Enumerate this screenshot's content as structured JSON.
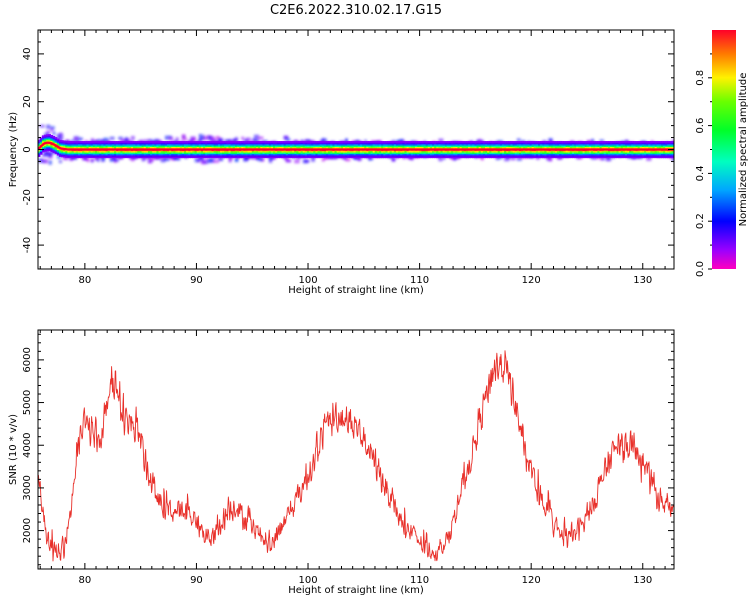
{
  "title": "C2E6.2022.310.02.17.G15",
  "chart_data": [
    {
      "type": "heatmap",
      "title": "C2E6.2022.310.02.17.G15",
      "xlabel": "Height of straight line (km)",
      "ylabel": "Frequency (Hz)",
      "xlim": [
        75.8,
        132.8
      ],
      "ylim": [
        -50,
        50
      ],
      "xticks": [
        80,
        90,
        100,
        110,
        120,
        130
      ],
      "yticks": [
        -40,
        -20,
        0,
        20,
        40
      ],
      "colorbar": {
        "label": "Normalized spectral amplitude",
        "range": [
          0,
          1
        ],
        "ticks": [
          "0.0",
          "0.2",
          "0.4",
          "0.6",
          "0.8"
        ],
        "colormap": "gist_rainbow"
      },
      "ridge": {
        "description_values": "dominant frequency along height",
        "x": [
          75.8,
          76.3,
          76.8,
          77.3,
          77.8,
          78.5,
          80,
          90,
          100,
          110,
          120,
          130,
          132.8
        ],
        "y": [
          0,
          2.5,
          3.0,
          2.0,
          0.5,
          0,
          0,
          0,
          0,
          0,
          0,
          0,
          0
        ],
        "spread_hz": [
          4,
          5,
          5,
          4,
          3,
          2.5,
          2.5,
          3,
          2.5,
          2,
          2,
          2,
          2
        ]
      },
      "grid": false
    },
    {
      "type": "line",
      "xlabel": "Height of straight line (km)",
      "ylabel": "SNR (10 * v/v)",
      "xlim": [
        75.8,
        132.8
      ],
      "ylim": [
        1100,
        6700
      ],
      "xticks": [
        80,
        90,
        100,
        110,
        120,
        130
      ],
      "yticks": [
        2000,
        3000,
        4000,
        5000,
        6000
      ],
      "series_color": "#e8302a",
      "envelope": {
        "x": [
          75.8,
          76.5,
          77.2,
          77.8,
          78.2,
          78.8,
          79.3,
          80.0,
          80.6,
          81.2,
          81.8,
          82.3,
          82.8,
          83.5,
          84.2,
          84.8,
          85.5,
          86.5,
          87.5,
          88.5,
          89.5,
          90.5,
          91.5,
          92.5,
          93.5,
          94.5,
          95.5,
          96.5,
          97.5,
          98.5,
          99.5,
          100.5,
          101.5,
          102.5,
          103.5,
          104.5,
          105.5,
          106.5,
          107.5,
          108.5,
          109.5,
          110.5,
          111.5,
          112.5,
          113.5,
          114.5,
          115.5,
          116.5,
          117.2,
          118.0,
          118.8,
          119.5,
          120.5,
          121.5,
          122.5,
          123.5,
          124.5,
          125.5,
          126.5,
          127.5,
          128.5,
          129.5,
          130.5,
          131.5,
          132.3,
          132.8
        ],
        "y": [
          3200,
          2000,
          1500,
          1400,
          1700,
          2600,
          3800,
          4600,
          4300,
          4000,
          4800,
          5600,
          5400,
          4600,
          4500,
          4300,
          3500,
          2700,
          2500,
          2400,
          2400,
          2000,
          1800,
          2300,
          2600,
          2200,
          1900,
          1600,
          2000,
          2500,
          3000,
          3600,
          4400,
          4700,
          4600,
          4400,
          3900,
          3300,
          2700,
          2100,
          1900,
          1600,
          1500,
          1800,
          2700,
          3600,
          4700,
          5700,
          6000,
          5600,
          4700,
          3800,
          3000,
          2400,
          1900,
          1800,
          2100,
          2600,
          3300,
          3900,
          4000,
          3900,
          3300,
          2700,
          2600,
          2600
        ],
        "noise_amplitude": 380
      }
    }
  ]
}
